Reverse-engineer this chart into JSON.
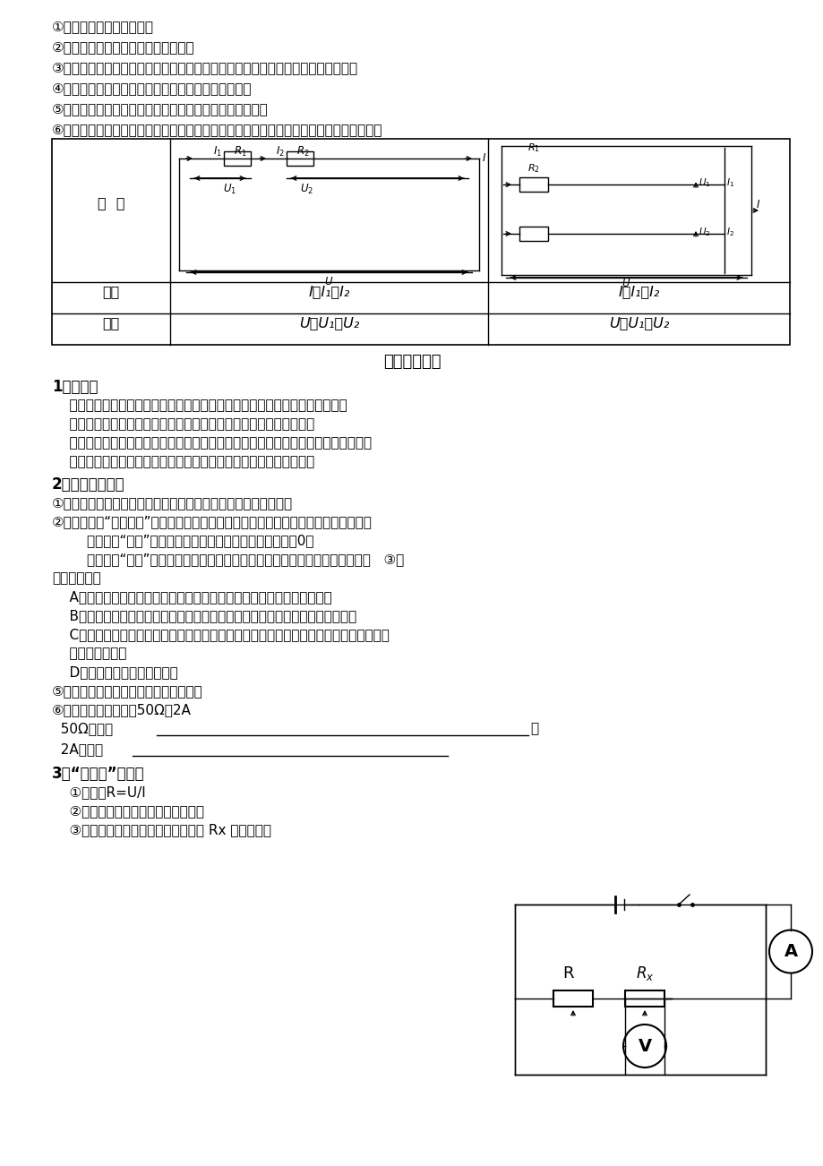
{
  "bg_color": "#ffffff",
  "lines_top": [
    "①并联电路中有多条路径。",
    "②断开一条支路，其它支路仍能工作。",
    "③干路上的总开关可以控制整个电路；支路上的开关只能控制所在支路上的用电器。",
    "④并联电路中，干路上的总电流等于各支路电流之和。",
    "⑤并联电路中，各支路两端的电压相等，都等于电源电压。",
    "⑥并联电池组的电压等于每节电池的电压，所以把电池并联起来用并不能得到更大的电压。"
  ],
  "table_header": "电  路",
  "table_row1_label": "电流",
  "table_row2_label": "电压",
  "table_series_current": "I＝I₁＝I₂",
  "table_series_voltage": "U＝U₁＋U₂",
  "table_parallel_current": "I＝I₁＋I₂",
  "table_parallel_voltage": "U＝U₁＝U₂",
  "section_title": "欧姆定律专题",
  "s1_title": "1、导体：",
  "s1_lines": [
    "    容易导电的物体。如：金属、石墨、人体、大地以及酸、碗、盐的水溶液等。",
    "    绝缘体：不容易导电的物体。如：橡胶、玻璃、陶瓷、塑料、油等。",
    "    导体和绝缘体之间没有绝对的界限。原来不导电的物体，条件改变时，也可能变成导",
    "    体。如：常态下的玻璃不导电，把它烧成红烘状态，就变成了导体。"
  ],
  "s2_title": "2、滑动变阻器：",
  "s2_lines": [
    "①原理：通过改变连入电路中电阻线的长度，来改变电阻的大小。",
    "②接法：必须“一上一下”（上边接哪个接线柱都行，下面接左还是接右要看题目要求）",
    "        若接的是“同上”，则相当于一根导线，在电路中的电阻为0。",
    "        若接的是“同下”，则相当于一个定値电阻，在电路中的电阻为它的最大阻値。   ③在",
    "电路中的作用",
    "    A、保护电路。（所以有要求：闭合开关前，滑片要位于其电阻最大端）",
    "    B、在研究电流与电阻的关系实验中，靠移动滑片来控制电阻两端的电压不变。",
    "    C、在研究电流与电压的关系实验中（或伏安法测电阻的实验中），靠移动滑片来改变电",
    "    阻两端的电压。",
    "    D、改变电路中电流的大小。",
    "⑤滑动变阻器应该和被控制的电路串联。",
    "⑥滑动变阻器的铭牌：50Ω、2A",
    "  50Ω表示：",
    "  2A表示："
  ],
  "s3_title": "3、“伏安法”测电阻",
  "s3_lines": [
    "    ①原理：R=U/I",
    "    ②需要的测量工具：电流表、电压表",
    "    ③滑动变阻器的作用：改变待测电阻 Rx 两端的电压"
  ]
}
